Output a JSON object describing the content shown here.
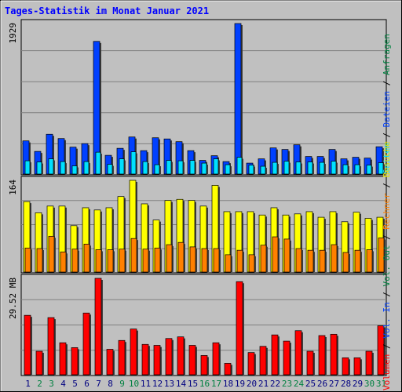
{
  "chart_data": [
    {
      "type": "bar",
      "title": "Tages-Statistik im Monat Januar 2021",
      "categories": [
        "1",
        "2",
        "3",
        "4",
        "5",
        "6",
        "7",
        "8",
        "9",
        "10",
        "11",
        "12",
        "13",
        "14",
        "15",
        "16",
        "17",
        "18",
        "19",
        "20",
        "21",
        "22",
        "23",
        "24",
        "25",
        "26",
        "27",
        "28",
        "29",
        "30",
        "31"
      ],
      "weekend_color": "#008040",
      "weekday_color": "#000080",
      "ymax_label": "1929",
      "ylim": [
        0,
        1929
      ],
      "grid": true,
      "legend": [
        "Anfragen",
        "Dateien",
        "Seiten"
      ],
      "series": [
        {
          "name": "Anfragen",
          "color": "#0040ff",
          "values": [
            425,
            290,
            510,
            455,
            345,
            390,
            1700,
            240,
            330,
            475,
            300,
            465,
            450,
            415,
            300,
            175,
            235,
            160,
            1929,
            140,
            195,
            335,
            315,
            375,
            225,
            225,
            315,
            195,
            215,
            205,
            350
          ]
        },
        {
          "name": "Dateien",
          "color": "#0040ff",
          "values": [
            415,
            280,
            500,
            445,
            335,
            380,
            1690,
            230,
            320,
            465,
            290,
            455,
            440,
            405,
            290,
            165,
            225,
            150,
            1910,
            130,
            185,
            325,
            305,
            365,
            215,
            215,
            305,
            185,
            205,
            195,
            340
          ]
        },
        {
          "name": "Seiten",
          "color": "#00e0ff",
          "values": [
            170,
            155,
            195,
            160,
            105,
            160,
            280,
            125,
            195,
            285,
            160,
            120,
            175,
            170,
            175,
            140,
            195,
            120,
            215,
            115,
            100,
            150,
            165,
            155,
            155,
            150,
            165,
            120,
            120,
            115,
            145
          ]
        }
      ]
    },
    {
      "type": "bar",
      "ymax_label": "164",
      "ylim": [
        0,
        164
      ],
      "grid": true,
      "legend": [
        "Besuche",
        "Rechner"
      ],
      "series": [
        {
          "name": "Besuche",
          "color": "#ffff00",
          "values": [
            126,
            106,
            118,
            118,
            83,
            115,
            111,
            115,
            135,
            164,
            122,
            93,
            128,
            130,
            128,
            118,
            155,
            108,
            108,
            108,
            102,
            115,
            102,
            104,
            108,
            98,
            108,
            90,
            107,
            96,
            98
          ]
        },
        {
          "name": "Rechner",
          "color": "#ff8000",
          "values": [
            43,
            42,
            64,
            36,
            41,
            50,
            40,
            40,
            41,
            60,
            41,
            43,
            49,
            53,
            45,
            42,
            42,
            31,
            39,
            31,
            48,
            63,
            59,
            42,
            39,
            39,
            49,
            35,
            39,
            40,
            61
          ]
        }
      ]
    },
    {
      "type": "bar",
      "ymax_label": "29.52 MB",
      "ylim": [
        0,
        29.52
      ],
      "grid": true,
      "legend": [
        "Volumen",
        "Vol. In",
        "Vol. Out"
      ],
      "series": [
        {
          "name": "Volumen",
          "color": "#ff0000",
          "values": [
            18.2,
            7.2,
            17.5,
            9.8,
            8.3,
            18.9,
            29.52,
            7.8,
            10.5,
            14.0,
            9.3,
            9.0,
            11.1,
            11.6,
            9.0,
            5.9,
            9.8,
            3.5,
            28.5,
            6.8,
            8.7,
            12.2,
            10.3,
            13.5,
            7.2,
            12.0,
            12.4,
            5.2,
            5.2,
            7.2,
            15.0
          ]
        }
      ]
    }
  ]
}
